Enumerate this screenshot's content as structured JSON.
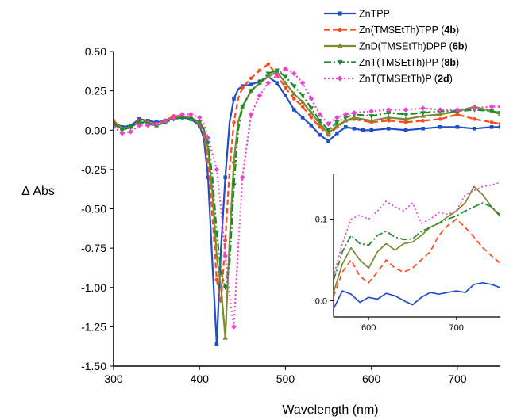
{
  "chart_data": [
    {
      "type": "line",
      "xlabel": "Wavelength (nm)",
      "ylabel": "Δ Abs",
      "xlim": [
        300,
        750
      ],
      "ylim": [
        -1.5,
        0.5
      ],
      "xticks": [
        300,
        400,
        500,
        600,
        700
      ],
      "xtick_labels": [
        "300",
        "400",
        "500",
        "600",
        "700"
      ],
      "yticks": [
        0.5,
        0.25,
        0.0,
        -0.25,
        -0.5,
        -0.75,
        -1.0,
        -1.25,
        -1.5
      ],
      "ytick_labels": [
        "0.50",
        "0.25",
        "0.00",
        "-0.25",
        "-0.50",
        "-0.75",
        "-1.00",
        "-1.25",
        "-1.50"
      ],
      "grid": false,
      "legend_position": "top-right",
      "series": [
        {
          "name": "ZnTPP",
          "legend_parts": [
            "ZnTPP"
          ],
          "color": "#1f4fc4",
          "dash": "",
          "marker": "square",
          "x": [
            300,
            310,
            320,
            330,
            340,
            350,
            360,
            370,
            380,
            390,
            400,
            405,
            410,
            415,
            420,
            425,
            430,
            435,
            440,
            445,
            450,
            460,
            470,
            480,
            490,
            500,
            510,
            520,
            530,
            540,
            550,
            560,
            570,
            580,
            590,
            600,
            620,
            640,
            660,
            680,
            700,
            720,
            740,
            750
          ],
          "y": [
            0.05,
            0.02,
            0.03,
            0.07,
            0.06,
            0.05,
            0.06,
            0.08,
            0.08,
            0.07,
            0.03,
            -0.05,
            -0.3,
            -0.85,
            -1.36,
            -0.75,
            -0.3,
            0.05,
            0.2,
            0.26,
            0.28,
            0.29,
            0.31,
            0.34,
            0.3,
            0.22,
            0.13,
            0.08,
            0.03,
            -0.03,
            -0.07,
            -0.02,
            0.02,
            0.01,
            0.0,
            0.0,
            0.01,
            0.0,
            0.01,
            0.02,
            0.02,
            0.01,
            0.02,
            0.02
          ]
        },
        {
          "name": "Zn(TMSEtTh)TPP (4b)",
          "legend_parts": [
            "Zn(TMSEtTh)TPP (",
            "4b",
            ")"
          ],
          "color": "#ff4a1c",
          "dash": "7,4",
          "marker": "circle",
          "x": [
            300,
            310,
            320,
            330,
            340,
            350,
            360,
            370,
            380,
            390,
            400,
            405,
            410,
            415,
            420,
            425,
            430,
            435,
            440,
            445,
            450,
            460,
            470,
            480,
            490,
            500,
            510,
            520,
            530,
            540,
            550,
            560,
            570,
            580,
            600,
            620,
            640,
            660,
            680,
            700,
            720,
            740,
            750
          ],
          "y": [
            0.06,
            0.01,
            0.02,
            0.06,
            0.05,
            0.04,
            0.06,
            0.09,
            0.09,
            0.08,
            0.04,
            -0.03,
            -0.2,
            -0.55,
            -0.95,
            -1.1,
            -0.7,
            -0.25,
            0.05,
            0.2,
            0.27,
            0.33,
            0.38,
            0.42,
            0.35,
            0.27,
            0.2,
            0.15,
            0.08,
            0.02,
            -0.03,
            0.02,
            0.06,
            0.07,
            0.05,
            0.06,
            0.05,
            0.06,
            0.07,
            0.1,
            0.07,
            0.05,
            0.04
          ]
        },
        {
          "name": "ZnD(TMSEtTh)DPP (6b)",
          "legend_parts": [
            "ZnD(TMSEtTh)DPP (",
            "6b",
            ")"
          ],
          "color": "#7d8a32",
          "dash": "",
          "marker": "triangle",
          "x": [
            300,
            310,
            320,
            330,
            340,
            350,
            360,
            370,
            380,
            390,
            400,
            405,
            410,
            415,
            420,
            425,
            430,
            435,
            440,
            445,
            450,
            460,
            470,
            480,
            490,
            500,
            510,
            520,
            530,
            540,
            550,
            560,
            570,
            580,
            600,
            620,
            640,
            660,
            680,
            700,
            720,
            740,
            750
          ],
          "y": [
            0.05,
            0.01,
            0.02,
            0.05,
            0.05,
            0.03,
            0.05,
            0.08,
            0.09,
            0.08,
            0.05,
            0.0,
            -0.12,
            -0.4,
            -0.8,
            -1.0,
            -1.32,
            -0.7,
            -0.2,
            0.05,
            0.15,
            0.25,
            0.3,
            0.34,
            0.37,
            0.3,
            0.23,
            0.18,
            0.11,
            0.04,
            -0.02,
            0.03,
            0.06,
            0.08,
            0.06,
            0.08,
            0.07,
            0.09,
            0.1,
            0.12,
            0.15,
            0.12,
            0.1
          ]
        },
        {
          "name": "ZnT(TMSEtTh)PP (8b)",
          "legend_parts": [
            "ZnT(TMSEtTh)PP (",
            "8b",
            ")"
          ],
          "color": "#1e8a2e",
          "dash": "9,3,2,3",
          "marker": "downtriangle",
          "x": [
            300,
            310,
            320,
            330,
            340,
            350,
            360,
            370,
            380,
            390,
            400,
            405,
            410,
            415,
            420,
            425,
            430,
            435,
            440,
            445,
            450,
            460,
            470,
            480,
            490,
            500,
            510,
            520,
            530,
            540,
            550,
            560,
            570,
            580,
            600,
            620,
            640,
            660,
            680,
            700,
            720,
            740,
            750
          ],
          "y": [
            0.04,
            0.0,
            0.02,
            0.05,
            0.04,
            0.03,
            0.05,
            0.07,
            0.08,
            0.07,
            0.05,
            0.01,
            -0.08,
            -0.3,
            -0.65,
            -0.9,
            -1.0,
            -0.85,
            -0.35,
            0.0,
            0.15,
            0.25,
            0.3,
            0.36,
            0.38,
            0.34,
            0.28,
            0.22,
            0.14,
            0.06,
            0.0,
            0.05,
            0.08,
            0.1,
            0.09,
            0.11,
            0.1,
            0.11,
            0.12,
            0.12,
            0.13,
            0.12,
            0.11
          ]
        },
        {
          "name": "ZnT(TMSEtTh)P (2d)",
          "legend_parts": [
            "ZnT(TMSEtTh)P (",
            "2d",
            ")"
          ],
          "color": "#ee40d4",
          "dash": "2,3",
          "marker": "diamond",
          "x": [
            300,
            310,
            320,
            330,
            340,
            350,
            360,
            370,
            380,
            390,
            400,
            405,
            410,
            415,
            420,
            425,
            430,
            435,
            440,
            445,
            450,
            460,
            470,
            480,
            490,
            500,
            510,
            520,
            530,
            540,
            550,
            560,
            570,
            580,
            600,
            620,
            640,
            660,
            680,
            700,
            720,
            740,
            750
          ],
          "y": [
            0.02,
            -0.02,
            -0.01,
            0.03,
            0.03,
            0.04,
            0.06,
            0.08,
            0.1,
            0.1,
            0.08,
            0.04,
            -0.05,
            -0.15,
            -0.25,
            -0.5,
            -0.8,
            -1.05,
            -1.25,
            -0.75,
            -0.3,
            0.1,
            0.22,
            0.3,
            0.35,
            0.39,
            0.36,
            0.3,
            0.2,
            0.1,
            0.04,
            0.08,
            0.1,
            0.11,
            0.12,
            0.13,
            0.13,
            0.14,
            0.13,
            0.13,
            0.14,
            0.15,
            0.15
          ]
        }
      ]
    },
    {
      "type": "line",
      "xlabel": "",
      "ylabel": "",
      "xlim": [
        560,
        750
      ],
      "ylim": [
        -0.02,
        0.155
      ],
      "xticks": [
        600,
        700
      ],
      "xtick_labels": [
        "600",
        "700"
      ],
      "yticks": [
        0.0,
        0.1
      ],
      "ytick_labels": [
        "0.0",
        "0.1"
      ],
      "grid": false,
      "series": [
        {
          "name": "ZnTPP",
          "color": "#1f4fc4",
          "dash": "",
          "x": [
            560,
            570,
            580,
            590,
            600,
            610,
            620,
            630,
            640,
            650,
            660,
            670,
            680,
            690,
            700,
            710,
            720,
            730,
            740,
            750
          ],
          "y": [
            -0.01,
            0.012,
            0.008,
            -0.002,
            0.004,
            0.002,
            0.009,
            0.006,
            0.0,
            -0.005,
            0.004,
            0.01,
            0.008,
            0.01,
            0.012,
            0.01,
            0.02,
            0.022,
            0.02,
            0.016
          ]
        },
        {
          "name": "Zn(TMSEtTh)TPP (4b)",
          "color": "#ff4a1c",
          "dash": "7,4",
          "x": [
            560,
            570,
            580,
            590,
            600,
            610,
            620,
            630,
            640,
            650,
            660,
            670,
            680,
            690,
            700,
            710,
            720,
            730,
            740,
            750
          ],
          "y": [
            0.005,
            0.035,
            0.05,
            0.03,
            0.022,
            0.035,
            0.05,
            0.04,
            0.035,
            0.04,
            0.05,
            0.06,
            0.08,
            0.092,
            0.1,
            0.09,
            0.078,
            0.065,
            0.055,
            0.046
          ]
        },
        {
          "name": "ZnD(TMSEtTh)DPP (6b)",
          "color": "#7d8a32",
          "dash": "",
          "x": [
            560,
            570,
            580,
            590,
            600,
            610,
            620,
            630,
            640,
            650,
            660,
            670,
            680,
            690,
            700,
            710,
            720,
            730,
            740,
            750
          ],
          "y": [
            0.01,
            0.045,
            0.065,
            0.05,
            0.04,
            0.06,
            0.07,
            0.062,
            0.07,
            0.072,
            0.08,
            0.09,
            0.095,
            0.103,
            0.11,
            0.12,
            0.14,
            0.13,
            0.115,
            0.103
          ]
        },
        {
          "name": "ZnT(TMSEtTh)PP (8b)",
          "color": "#1e8a2e",
          "dash": "9,3,2,3",
          "x": [
            560,
            570,
            580,
            590,
            600,
            610,
            620,
            630,
            640,
            650,
            660,
            670,
            680,
            690,
            700,
            710,
            720,
            730,
            740,
            750
          ],
          "y": [
            0.025,
            0.06,
            0.08,
            0.07,
            0.068,
            0.08,
            0.085,
            0.078,
            0.075,
            0.076,
            0.085,
            0.09,
            0.095,
            0.1,
            0.104,
            0.11,
            0.115,
            0.12,
            0.115,
            0.105
          ]
        },
        {
          "name": "ZnT(TMSEtTh)P (2d)",
          "color": "#ee40d4",
          "dash": "2,3",
          "x": [
            560,
            570,
            580,
            590,
            600,
            610,
            620,
            630,
            640,
            650,
            660,
            670,
            680,
            690,
            700,
            710,
            720,
            730,
            740,
            750
          ],
          "y": [
            0.03,
            0.07,
            0.1,
            0.105,
            0.1,
            0.11,
            0.122,
            0.115,
            0.11,
            0.12,
            0.095,
            0.1,
            0.108,
            0.106,
            0.11,
            0.13,
            0.135,
            0.14,
            0.142,
            0.145
          ]
        }
      ]
    }
  ]
}
